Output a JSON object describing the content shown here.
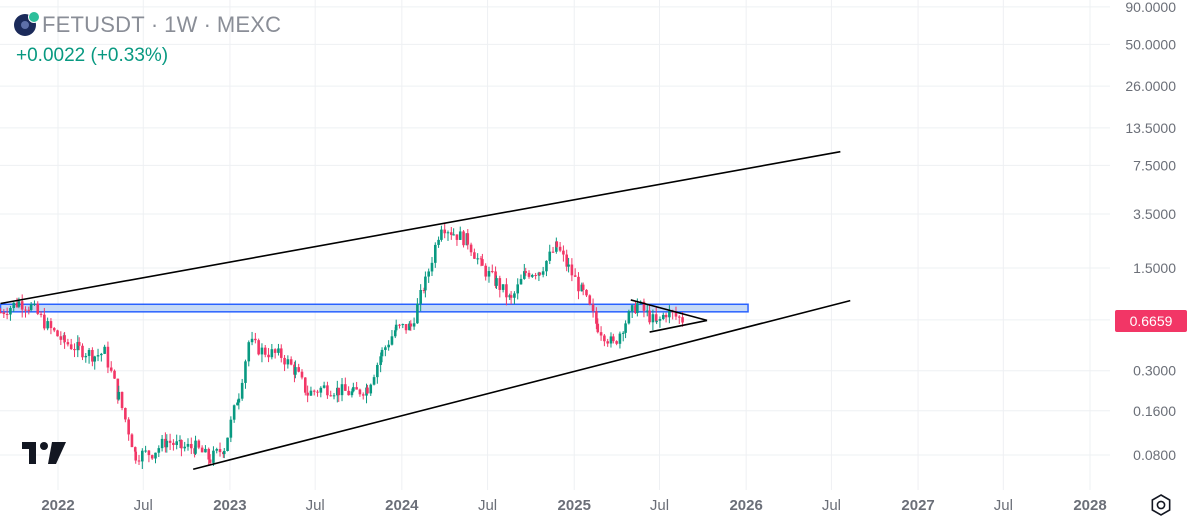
{
  "header": {
    "symbol": "FETUSDT",
    "interval": "1W",
    "exchange": "MEXC",
    "separator": "·",
    "change": "+0.0022 (+0.33%)"
  },
  "colors": {
    "up": "#089981",
    "down": "#f23666",
    "zone_fill": "#bcd3f5",
    "zone_stroke": "#2962ff",
    "trendline": "#000000",
    "axis_text": "#6b6f78"
  },
  "icons": {
    "logo": "fetch-ai-logo",
    "tradingview": "tradingview-logo",
    "settings": "settings-gear-icon"
  },
  "price_label": "0.6659",
  "chart_data": {
    "type": "candlestick",
    "y_scale": "log",
    "y_ticks": [
      "90.0000",
      "50.0000",
      "26.0000",
      "13.5000",
      "7.5000",
      "3.5000",
      "1.5000",
      "0.6659",
      "0.3000",
      "0.1600",
      "0.0800"
    ],
    "y_tick_values": [
      90,
      50,
      26,
      13.5,
      7.5,
      3.5,
      1.5,
      0.6659,
      0.3,
      0.16,
      0.08
    ],
    "x_ticks": [
      {
        "label": "2022",
        "date": "2022-01-01",
        "year": true
      },
      {
        "label": "Jul",
        "date": "2022-07-01",
        "year": false
      },
      {
        "label": "2023",
        "date": "2023-01-01",
        "year": true
      },
      {
        "label": "Jul",
        "date": "2023-07-01",
        "year": false
      },
      {
        "label": "2024",
        "date": "2024-01-01",
        "year": true
      },
      {
        "label": "Jul",
        "date": "2024-07-01",
        "year": false
      },
      {
        "label": "2025",
        "date": "2025-01-01",
        "year": true
      },
      {
        "label": "Jul",
        "date": "2025-07-01",
        "year": false
      },
      {
        "label": "2026",
        "date": "2026-01-01",
        "year": true
      },
      {
        "label": "Jul",
        "date": "2026-07-01",
        "year": false
      },
      {
        "label": "2027",
        "date": "2027-01-01",
        "year": true
      },
      {
        "label": "Jul",
        "date": "2027-07-01",
        "year": false
      },
      {
        "label": "2028",
        "date": "2028-01-01",
        "year": true
      }
    ],
    "price_path": [
      [
        "2021-09-01",
        0.75
      ],
      [
        "2021-10-10",
        0.88
      ],
      [
        "2021-11-05",
        0.82
      ],
      [
        "2021-12-10",
        0.6
      ],
      [
        "2022-01-15",
        0.47
      ],
      [
        "2022-02-15",
        0.42
      ],
      [
        "2022-03-20",
        0.38
      ],
      [
        "2022-04-10",
        0.4
      ],
      [
        "2022-05-10",
        0.2
      ],
      [
        "2022-06-15",
        0.08
      ],
      [
        "2022-07-20",
        0.083
      ],
      [
        "2022-08-20",
        0.1
      ],
      [
        "2022-09-20",
        0.09
      ],
      [
        "2022-10-20",
        0.09
      ],
      [
        "2022-11-20",
        0.075
      ],
      [
        "2022-12-20",
        0.09
      ],
      [
        "2023-01-20",
        0.21
      ],
      [
        "2023-02-10",
        0.47
      ],
      [
        "2023-03-10",
        0.41
      ],
      [
        "2023-04-20",
        0.38
      ],
      [
        "2023-05-20",
        0.3
      ],
      [
        "2023-06-15",
        0.21
      ],
      [
        "2023-07-20",
        0.23
      ],
      [
        "2023-08-20",
        0.22
      ],
      [
        "2023-09-20",
        0.21
      ],
      [
        "2023-10-20",
        0.23
      ],
      [
        "2023-11-20",
        0.4
      ],
      [
        "2023-12-20",
        0.58
      ],
      [
        "2024-01-20",
        0.6
      ],
      [
        "2024-02-20",
        1.2
      ],
      [
        "2024-03-25",
        3.0
      ],
      [
        "2024-04-20",
        2.6
      ],
      [
        "2024-05-20",
        2.3
      ],
      [
        "2024-06-20",
        1.5
      ],
      [
        "2024-07-20",
        1.2
      ],
      [
        "2024-08-20",
        0.9
      ],
      [
        "2024-09-20",
        1.4
      ],
      [
        "2024-10-20",
        1.45
      ],
      [
        "2024-11-25",
        2.1
      ],
      [
        "2024-12-20",
        1.5
      ],
      [
        "2025-01-20",
        1.0
      ],
      [
        "2025-02-20",
        0.6
      ],
      [
        "2025-03-25",
        0.45
      ],
      [
        "2025-04-20",
        0.65
      ],
      [
        "2025-05-15",
        0.85
      ],
      [
        "2025-06-10",
        0.7
      ],
      [
        "2025-06-25",
        0.62
      ],
      [
        "2025-07-15",
        0.75
      ],
      [
        "2025-08-05",
        0.7
      ],
      [
        "2025-08-20",
        0.6659
      ]
    ],
    "zone": {
      "from": "2021-09-01",
      "to": "2026-01-05",
      "low": 0.755,
      "high": 0.85
    },
    "trendlines": [
      {
        "name": "upper-channel",
        "from": [
          "2021-09-01",
          0.86
        ],
        "to": [
          "2026-07-20",
          9.3
        ]
      },
      {
        "name": "lower-channel",
        "from": [
          "2022-10-15",
          0.064
        ],
        "to": [
          "2026-08-10",
          0.9
        ]
      },
      {
        "name": "triangle-top",
        "from": [
          "2025-05-01",
          0.91
        ],
        "to": [
          "2025-10-10",
          0.66
        ]
      },
      {
        "name": "triangle-bottom",
        "from": [
          "2025-06-10",
          0.55
        ],
        "to": [
          "2025-10-10",
          0.66
        ]
      }
    ]
  }
}
